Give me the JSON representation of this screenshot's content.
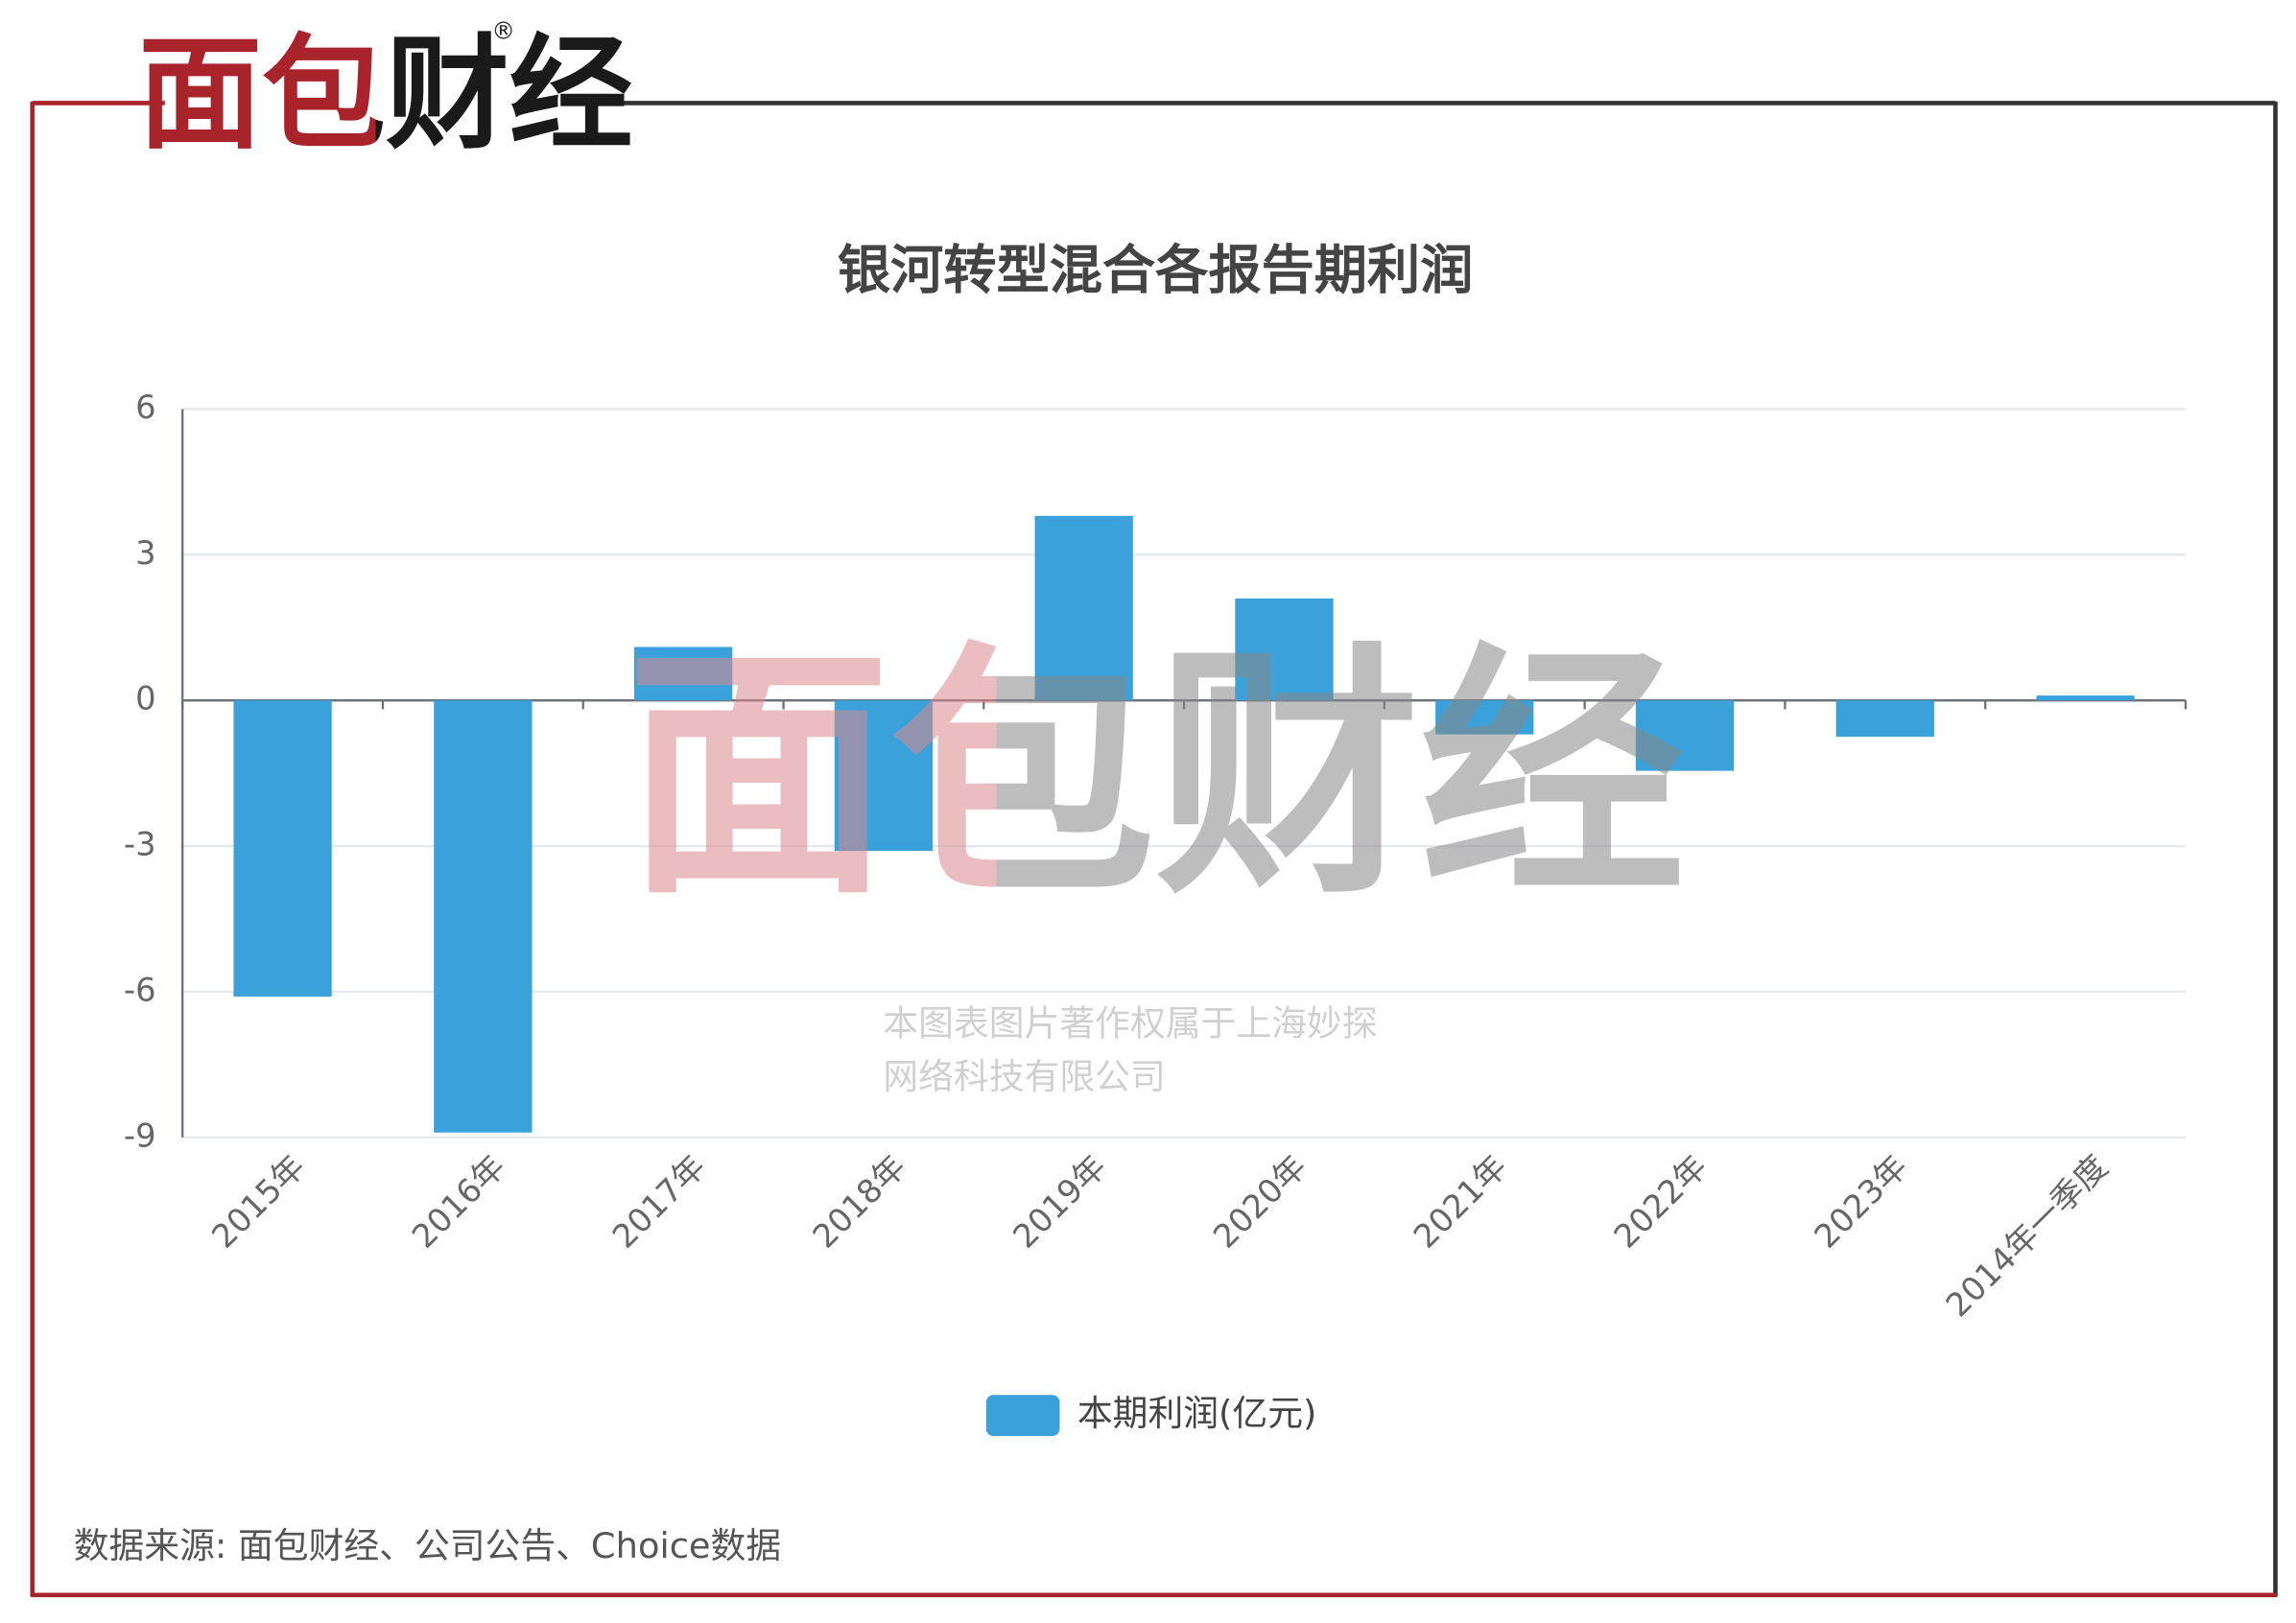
{
  "header": {
    "logo": "面包财经",
    "registered": "®"
  },
  "chart_data": {
    "type": "bar",
    "title": "银河转型混合各报告期利润",
    "categories": [
      "2015年",
      "2016年",
      "2017年",
      "2018年",
      "2019年",
      "2020年",
      "2021年",
      "2022年",
      "2023年",
      "2014年一季度"
    ],
    "series": [
      {
        "name": "本期利润(亿元)",
        "color": "#3ba1da",
        "values": [
          -6.1,
          -8.9,
          1.1,
          -3.1,
          3.8,
          2.1,
          -0.7,
          -1.45,
          -0.75,
          0.1
        ]
      }
    ],
    "ylim": [
      -9,
      6
    ],
    "yticks": [
      -9,
      -6,
      -3,
      0,
      3,
      6
    ],
    "grid": true,
    "legend": "bottom"
  },
  "watermark": {
    "logo": "面包财经",
    "lines": [
      "本图表图片著作权属于上海妙探",
      "网络科技有限公司"
    ]
  },
  "footer": {
    "source": "数据来源: 面包财经、公司公告、Choice数据"
  }
}
